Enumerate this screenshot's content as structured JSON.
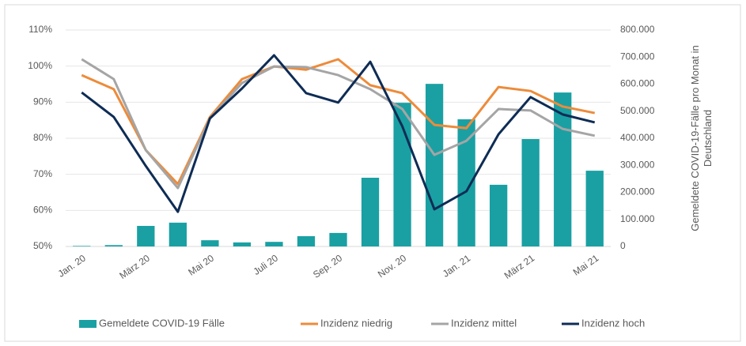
{
  "chart_data": {
    "type": "bar",
    "categories": [
      "Jan. 20",
      null,
      "März 20",
      null,
      "Mai 20",
      null,
      "Juli 20",
      null,
      "Sep. 20",
      null,
      "Nov. 20",
      null,
      "Jan. 21",
      null,
      "März 21",
      null,
      "Mai 21"
    ],
    "series": [
      {
        "name": "Gemeldete COVID-19 Fälle",
        "type": "bar",
        "axis": "y2",
        "color": "#1aa0a3",
        "values": [
          2000,
          5000,
          76000,
          88000,
          23000,
          15000,
          17000,
          38000,
          50000,
          254000,
          531000,
          601000,
          470000,
          228000,
          397000,
          569000,
          280000
        ]
      },
      {
        "name": "Inzidenz niedrig",
        "type": "line",
        "color": "#ed8b3a",
        "values": [
          97.5,
          93.6,
          76.7,
          67.3,
          85.9,
          96.4,
          99.9,
          99,
          101.9,
          94.7,
          92.5,
          83.7,
          82.8,
          94.2,
          93.1,
          88.8,
          87
        ]
      },
      {
        "name": "Inzidenz mittel",
        "type": "line",
        "color": "#a5a5a5",
        "values": [
          101.9,
          96.4,
          76.7,
          66.2,
          85.5,
          95.3,
          99.9,
          99.7,
          97.5,
          93.6,
          88.1,
          75.4,
          79.3,
          88.1,
          87.7,
          82.6,
          80.7
        ]
      },
      {
        "name": "Inzidenz hoch",
        "type": "line",
        "color": "#0e2c55",
        "values": [
          92.7,
          85.9,
          72.3,
          59.6,
          85.5,
          93.8,
          103,
          92.5,
          89.9,
          101.2,
          83.3,
          60.3,
          65.3,
          81.1,
          91.4,
          86.6,
          84.4
        ]
      }
    ],
    "ylim": [
      50,
      110
    ],
    "yticks": [
      {
        "value": 50,
        "label": "50%"
      },
      {
        "value": 60,
        "label": "60%"
      },
      {
        "value": 70,
        "label": "70%"
      },
      {
        "value": 80,
        "label": "80%"
      },
      {
        "value": 90,
        "label": "90%"
      },
      {
        "value": 100,
        "label": "100%"
      },
      {
        "value": 110,
        "label": "110%"
      }
    ],
    "y2lim": [
      0,
      800000
    ],
    "y2ticks": [
      0,
      {
        "value": 100000,
        "label": "100.000"
      },
      {
        "value": 200000,
        "label": "200.000"
      },
      {
        "value": 300000,
        "label": "300.000"
      },
      {
        "value": 400000,
        "label": "400.000"
      },
      {
        "value": 500000,
        "label": "500.000"
      },
      {
        "value": 600000,
        "label": "600.000"
      },
      {
        "value": 700000,
        "label": "700.000"
      },
      {
        "value": 800000,
        "label": "800.000"
      }
    ],
    "y2_label": [
      "Gemeldete COVID-19-Fälle pro Monat in",
      "Deutschland"
    ],
    "legend": "bottom"
  }
}
